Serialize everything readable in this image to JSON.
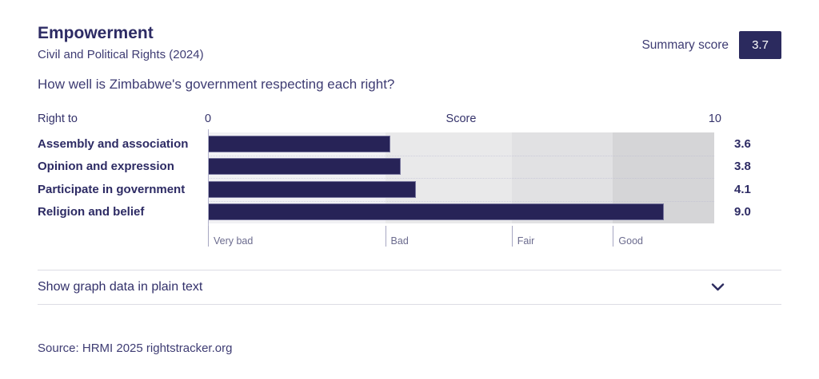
{
  "header": {
    "title": "Empowerment",
    "subtitle": "Civil and Political Rights (2024)",
    "summary_score_label": "Summary score",
    "summary_score_value": "3.7",
    "accent_color": "#2b2a5e"
  },
  "question": "How well is Zimbabwe's government respecting each right?",
  "chart_data": {
    "type": "bar",
    "orientation": "horizontal",
    "row_header": "Right to",
    "axis_title": "Score",
    "axis_min_label": "0",
    "axis_max_label": "10",
    "xlim": [
      0,
      10
    ],
    "categories": [
      "Assembly and association",
      "Opinion and expression",
      "Participate in government",
      "Religion and belief"
    ],
    "values": [
      3.6,
      3.8,
      4.1,
      9.0
    ],
    "value_labels": [
      "3.6",
      "3.8",
      "4.1",
      "9.0"
    ],
    "bar_color": "#272357",
    "legend_position": "none",
    "grid": "off",
    "bands": [
      {
        "label": "Very bad",
        "from": 0,
        "to": 3.5,
        "color": "#f1f1f4"
      },
      {
        "label": "Bad",
        "from": 3.5,
        "to": 6,
        "color": "#e9e9ea"
      },
      {
        "label": "Fair",
        "from": 6,
        "to": 8,
        "color": "#e1e1e3"
      },
      {
        "label": "Good",
        "from": 8,
        "to": 10,
        "color": "#d5d5d7"
      }
    ]
  },
  "toggle": {
    "label": "Show graph data in plain text",
    "chevron_icon": "chevron-down"
  },
  "source": "Source: HRMI 2025 rightstracker.org"
}
